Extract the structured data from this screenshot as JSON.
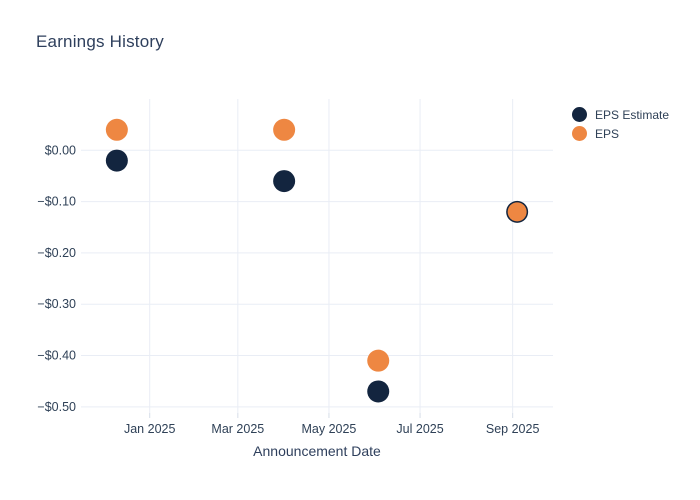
{
  "title": "Earnings History",
  "legend": {
    "items": [
      {
        "label": "EPS Estimate",
        "color": "#13253F"
      },
      {
        "label": "EPS",
        "color": "#EE8742"
      }
    ]
  },
  "chart_data": {
    "type": "scatter",
    "title": "Earnings History",
    "xlabel": "Announcement Date",
    "ylabel": "",
    "grid": true,
    "legend_position": "top-right",
    "x_ticks": [
      {
        "label": "Jan 2025",
        "date": "2025-01-01"
      },
      {
        "label": "Mar 2025",
        "date": "2025-03-01"
      },
      {
        "label": "May 2025",
        "date": "2025-05-01"
      },
      {
        "label": "Jul 2025",
        "date": "2025-07-01"
      },
      {
        "label": "Sep 2025",
        "date": "2025-09-01"
      }
    ],
    "y_ticks": [
      {
        "label": "$0.00",
        "value": 0.0
      },
      {
        "label": "−$0.10",
        "value": -0.1
      },
      {
        "label": "−$0.20",
        "value": -0.2
      },
      {
        "label": "−$0.30",
        "value": -0.3
      },
      {
        "label": "−$0.40",
        "value": -0.4
      },
      {
        "label": "−$0.50",
        "value": -0.5
      }
    ],
    "x_range": [
      "2024-11-16",
      "2025-09-28"
    ],
    "y_range": [
      -0.512,
      0.1
    ],
    "series": [
      {
        "name": "EPS Estimate",
        "color": "#13253F",
        "points": [
          {
            "date": "2024-12-10",
            "value": -0.02
          },
          {
            "date": "2025-04-01",
            "value": -0.06
          },
          {
            "date": "2025-06-03",
            "value": -0.47
          },
          {
            "date": "2025-09-04",
            "value": -0.12
          }
        ]
      },
      {
        "name": "EPS",
        "color": "#EE8742",
        "points": [
          {
            "date": "2024-12-10",
            "value": 0.04
          },
          {
            "date": "2025-04-01",
            "value": 0.04
          },
          {
            "date": "2025-06-03",
            "value": -0.41
          },
          {
            "date": "2025-09-04",
            "value": -0.12
          }
        ]
      }
    ]
  },
  "colors": {
    "grid": "#E9EDF5",
    "tick_mark": "#D6DDE8",
    "tick_text": "#2F4157",
    "title_text": "#2E3F5C"
  }
}
